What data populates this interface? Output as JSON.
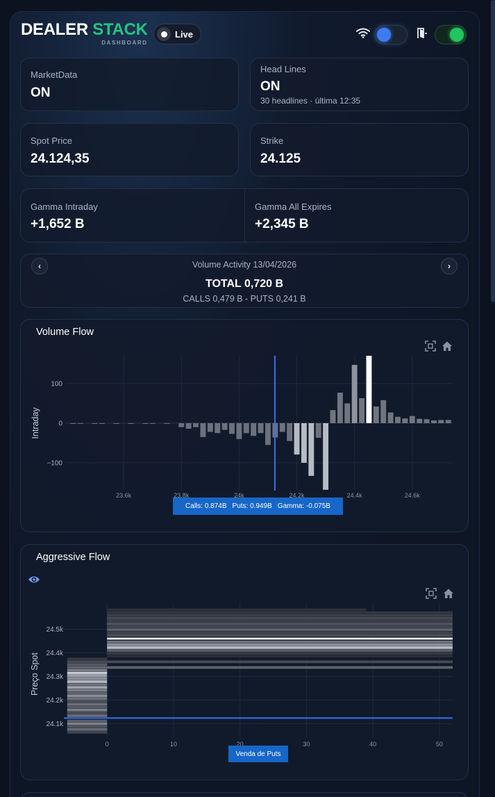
{
  "brand": {
    "word1": "DEALER",
    "word2": "STACK",
    "sub": "DASHBOARD",
    "accent": "#22c482"
  },
  "live_toggle": {
    "label": "Live"
  },
  "icons": {
    "wifi": "wifi-icon",
    "theme_toggle": "toggle-switch",
    "door": "door-icon",
    "market_toggle": "toggle-switch",
    "zoom": "fullscreen-icon",
    "home": "home-icon",
    "eye": "eye-icon",
    "prev": "chevron-left-icon",
    "next": "chevron-right-icon"
  },
  "cards": {
    "market_data": {
      "label": "MarketData",
      "value": "ON"
    },
    "headlines": {
      "label": "Head Lines",
      "value": "ON",
      "sub": "30 headlines · última 12:35"
    },
    "spot": {
      "label": "Spot Price",
      "value": "24.124,35"
    },
    "strike": {
      "label": "Strike",
      "value": "24.125"
    },
    "gamma_intraday": {
      "label": "Gamma Intraday",
      "value": "+1,652 B"
    },
    "gamma_all": {
      "label": "Gamma All Expires",
      "value": "+2,345 B"
    }
  },
  "volume_activity": {
    "title": "Volume Activity 13/04/2026",
    "total": "TOTAL 0,720 B",
    "split": "CALLS 0,479 B - PUTS 0,241 B",
    "prev_label": "‹",
    "next_label": "›"
  },
  "volume_flow": {
    "title": "Volume Flow",
    "tooltip": {
      "calls": "Calls: 0.874B",
      "puts": "Puts: 0.949B",
      "gamma": "Gamma: -0.075B"
    }
  },
  "aggressive_flow": {
    "title": "Aggressive Flow",
    "tooltip": "Venda de Puts"
  },
  "chart_data": [
    {
      "type": "bar",
      "title": "Volume Flow",
      "xlabel": "",
      "ylabel": "Intraday",
      "xlim": [
        23400,
        24740
      ],
      "ylim": [
        -170,
        170
      ],
      "grid": true,
      "xticks": [
        "23.6k",
        "23.8k",
        "24k",
        "24.2k",
        "24.4k",
        "24.6k"
      ],
      "xtick_values": [
        23600,
        23800,
        24000,
        24200,
        24400,
        24600
      ],
      "yticks": [
        "100",
        "0",
        "−100"
      ],
      "ytick_values": [
        100,
        0,
        -100
      ],
      "spot_line_x": 24124,
      "bar_width": 20,
      "x": [
        23400,
        23425,
        23450,
        23475,
        23500,
        23525,
        23550,
        23575,
        23600,
        23625,
        23650,
        23675,
        23700,
        23725,
        23750,
        23775,
        23800,
        23825,
        23850,
        23875,
        23900,
        23925,
        23950,
        23975,
        24000,
        24025,
        24050,
        24075,
        24100,
        24125,
        24150,
        24175,
        24200,
        24225,
        24250,
        24275,
        24300,
        24325,
        24350,
        24375,
        24400,
        24425,
        24450,
        24475,
        24500,
        24525,
        24550,
        24575,
        24600,
        24625,
        24650,
        24675,
        24700,
        24725
      ],
      "values": [
        0,
        -1,
        -1,
        0,
        -1,
        -1,
        0,
        -1,
        0,
        -1,
        0,
        -1,
        -1,
        0,
        -1,
        0,
        -10,
        -14,
        -10,
        -35,
        -22,
        -25,
        -17,
        -27,
        -40,
        -25,
        -32,
        -25,
        -55,
        -36,
        -22,
        -45,
        -79,
        -100,
        -133,
        -37,
        -168,
        33,
        77,
        50,
        147,
        63,
        170,
        42,
        58,
        27,
        16,
        12,
        18,
        11,
        10,
        7,
        8,
        8
      ],
      "highlight": {
        "x": 24450,
        "color": "#ffffff"
      },
      "series_colors": {
        "neutral": "#6c727d",
        "puts_dark": "#636974",
        "puts_light": "#b6bbc4"
      }
    },
    {
      "type": "heatmap",
      "title": "Aggressive Flow",
      "xlabel": "",
      "ylabel": "Preço Spot",
      "xlim": [
        -6.5,
        52
      ],
      "ylim": [
        24040,
        24610
      ],
      "grid": true,
      "xticks": [
        "0",
        "10",
        "20",
        "30",
        "40",
        "50"
      ],
      "xtick_values": [
        0,
        10,
        20,
        30,
        40,
        50
      ],
      "yticks": [
        "24.5k",
        "24.4k",
        "24.3k",
        "24.2k",
        "24.1k"
      ],
      "ytick_values": [
        24500,
        24400,
        24300,
        24200,
        24100
      ],
      "spot_line_y": 24124,
      "rows": [
        {
          "y": 24582,
          "x0": 0,
          "x1": 39,
          "color": "#2c313c"
        },
        {
          "y": 24570,
          "x0": 0,
          "x1": 52,
          "color": "#32363f"
        },
        {
          "y": 24558,
          "x0": 0,
          "x1": 52,
          "color": "#3b404a"
        },
        {
          "y": 24546,
          "x0": 0,
          "x1": 52,
          "color": "#454a54"
        },
        {
          "y": 24534,
          "x0": 0,
          "x1": 52,
          "color": "#3a3f49"
        },
        {
          "y": 24522,
          "x0": 0,
          "x1": 52,
          "color": "#4f545e"
        },
        {
          "y": 24510,
          "x0": 0,
          "x1": 52,
          "color": "#414650"
        },
        {
          "y": 24498,
          "x0": 0,
          "x1": 52,
          "color": "#5c616b"
        },
        {
          "y": 24486,
          "x0": 0,
          "x1": 52,
          "color": "#3d424c"
        },
        {
          "y": 24474,
          "x0": 0,
          "x1": 52,
          "color": "#4c515b"
        },
        {
          "y": 24460,
          "x0": 0,
          "x1": 52,
          "color": "#ffffff"
        },
        {
          "y": 24446,
          "x0": 0,
          "x1": 52,
          "color": "#6f747e"
        },
        {
          "y": 24434,
          "x0": 0,
          "x1": 52,
          "color": "#8c919a"
        },
        {
          "y": 24422,
          "x0": 0,
          "x1": 52,
          "color": "#b7bbc3"
        },
        {
          "y": 24410,
          "x0": 0,
          "x1": 52,
          "color": "#5b606a"
        },
        {
          "y": 24398,
          "x0": 0,
          "x1": 52,
          "color": "#353a44"
        },
        {
          "y": 24386,
          "x0": 0,
          "x1": 52,
          "color": "#2a2f39"
        },
        {
          "y": 24374,
          "x0": -6,
          "x1": 0,
          "color": "#343944"
        },
        {
          "y": 24362,
          "x0": -6,
          "x1": 52,
          "color": "#454a54"
        },
        {
          "y": 24350,
          "x0": -6,
          "x1": 0,
          "color": "#555a64"
        },
        {
          "y": 24338,
          "x0": -6,
          "x1": 52,
          "color": "#5e636d"
        },
        {
          "y": 24326,
          "x0": -6,
          "x1": 0,
          "color": "#777c86"
        },
        {
          "y": 24314,
          "x0": -6,
          "x1": 0,
          "color": "#c7cbd2"
        },
        {
          "y": 24302,
          "x0": -6,
          "x1": 0,
          "color": "#9aa0a9"
        },
        {
          "y": 24290,
          "x0": -6,
          "x1": 0,
          "color": "#8a8f99"
        },
        {
          "y": 24278,
          "x0": -6,
          "x1": 0,
          "color": "#b2b7bf"
        },
        {
          "y": 24266,
          "x0": -6,
          "x1": 0,
          "color": "#6a6f79"
        },
        {
          "y": 24254,
          "x0": -6,
          "x1": 0,
          "color": "#a0a5ae"
        },
        {
          "y": 24242,
          "x0": -6,
          "x1": 0,
          "color": "#7c818b"
        },
        {
          "y": 24230,
          "x0": -6,
          "x1": 0,
          "color": "#5f646e"
        },
        {
          "y": 24218,
          "x0": -6,
          "x1": 0,
          "color": "#8a8f99"
        },
        {
          "y": 24206,
          "x0": -6,
          "x1": 0,
          "color": "#6d727c"
        },
        {
          "y": 24194,
          "x0": -6,
          "x1": 0,
          "color": "#4b505a"
        },
        {
          "y": 24182,
          "x0": -6,
          "x1": 0,
          "color": "#6c717b"
        },
        {
          "y": 24170,
          "x0": -6,
          "x1": 0,
          "color": "#565b65"
        },
        {
          "y": 24158,
          "x0": -6,
          "x1": 0,
          "color": "#7a7f89"
        },
        {
          "y": 24146,
          "x0": -6,
          "x1": 0,
          "color": "#484d57"
        },
        {
          "y": 24134,
          "x0": -6,
          "x1": 0,
          "color": "#6a6f79"
        },
        {
          "y": 24112,
          "x0": -6,
          "x1": 0,
          "color": "#5a5f69"
        },
        {
          "y": 24100,
          "x0": -6,
          "x1": 0,
          "color": "#7e838d"
        },
        {
          "y": 24088,
          "x0": -6,
          "x1": 0,
          "color": "#4e535d"
        },
        {
          "y": 24076,
          "x0": -6,
          "x1": 0,
          "color": "#656a74"
        },
        {
          "y": 24064,
          "x0": -6,
          "x1": 0,
          "color": "#3f444e"
        }
      ]
    }
  ],
  "colors": {
    "accent_green": "#22c482",
    "spot_line": "#3b6ff0",
    "tooltip_bg": "#1766c8"
  }
}
